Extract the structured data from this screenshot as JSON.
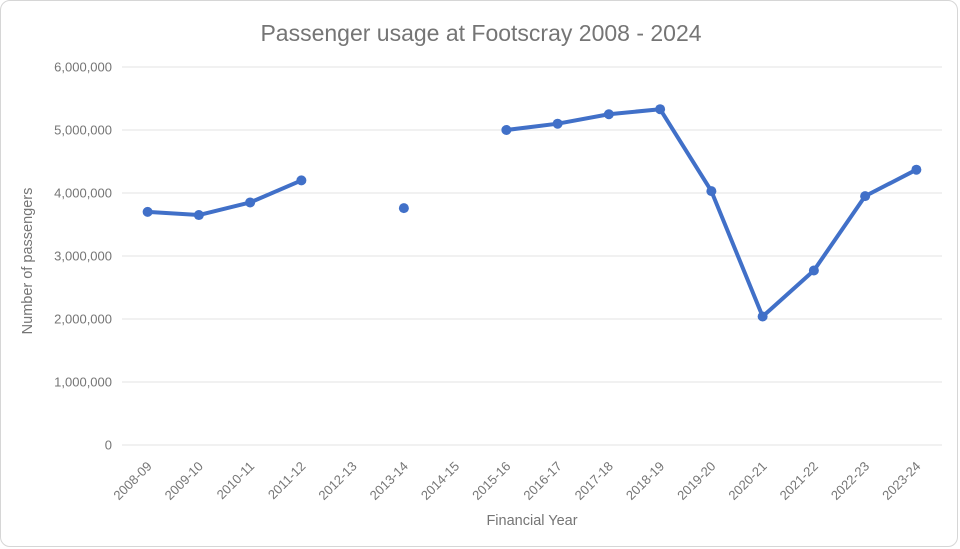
{
  "chart_data": {
    "type": "line",
    "title": "Passenger usage at Footscray 2008 - 2024",
    "xlabel": "Financial Year",
    "ylabel": "Number of passengers",
    "categories": [
      "2008-09",
      "2009-10",
      "2010-11",
      "2011-12",
      "2012-13",
      "2013-14",
      "2014-15",
      "2015-16",
      "2016-17",
      "2017-18",
      "2018-19",
      "2019-20",
      "2020-21",
      "2021-22",
      "2022-23",
      "2023-24"
    ],
    "values": [
      3700000,
      3650000,
      3850000,
      4200000,
      null,
      3760000,
      null,
      5000000,
      5100000,
      5250000,
      5330000,
      4030000,
      2040000,
      2770000,
      3950000,
      4370000
    ],
    "ylim": [
      0,
      6000000
    ],
    "ytick_interval": 1000000,
    "grid": true,
    "legend_position": "none",
    "gaps": "null values create breaks in the line; 2013-14 is an isolated point",
    "marker": "circle"
  },
  "colors": {
    "series_line": "#4170C8",
    "title_text": "#757575",
    "axis_text": "#757575",
    "gridline": "#e3e3e3",
    "frame_border": "#d6d6d6",
    "background": "#ffffff"
  }
}
